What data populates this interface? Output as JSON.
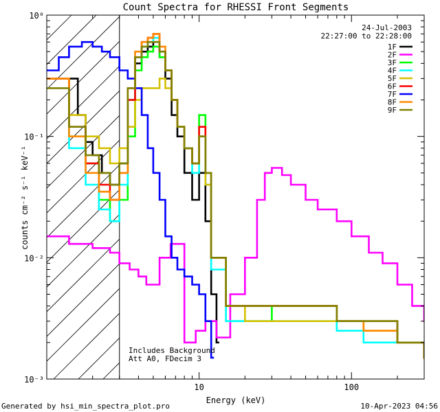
{
  "chart_data": {
    "type": "line",
    "title": "Count Spectra for RHESSI Front Segments",
    "xlabel": "Energy (keV)",
    "ylabel_html": "counts cm⁻² s⁻¹ keV⁻¹",
    "x_scale": "log",
    "y_scale": "log",
    "xlim": [
      1,
      300
    ],
    "ylim": [
      0.001,
      1
    ],
    "x_ticks": [
      {
        "v": 10,
        "label": "10"
      },
      {
        "v": 100,
        "label": "100"
      }
    ],
    "y_ticks": [
      {
        "v": 0.001,
        "label": "10⁻³"
      },
      {
        "v": 0.01,
        "label": "10⁻²"
      },
      {
        "v": 0.1,
        "label": "10⁻¹"
      },
      {
        "v": 1,
        "label": "10⁰"
      }
    ],
    "date": "24-Jul-2003",
    "time_range": "22:27:00 to 22:28:00",
    "legend_position": "top-right",
    "annotations": [
      "Includes Background",
      "Att A0, FDecim 3"
    ],
    "hatched_region_max_kev": 3,
    "series": [
      {
        "name": "1F",
        "color": "#000000",
        "x": [
          1.4,
          1.6,
          1.8,
          2.0,
          2.3,
          2.6,
          3.0,
          3.4,
          3.8,
          4.2,
          4.6,
          5.0,
          5.5,
          6.0,
          6.6,
          7.2,
          8.0,
          9.0,
          10.0,
          11.0,
          12.0,
          13.0
        ],
        "y": [
          0.3,
          0.15,
          0.09,
          0.07,
          0.05,
          0.04,
          0.06,
          0.2,
          0.4,
          0.5,
          0.55,
          0.6,
          0.45,
          0.3,
          0.15,
          0.1,
          0.05,
          0.03,
          0.05,
          0.02,
          0.005,
          0.002
        ]
      },
      {
        "name": "2F",
        "color": "#ff00ff",
        "x": [
          1.0,
          1.4,
          2.0,
          2.6,
          3.0,
          3.5,
          4.0,
          4.5,
          5.5,
          6.5,
          8.0,
          9.5,
          11.0,
          13.0,
          16.0,
          20.0,
          24.0,
          27.0,
          30.0,
          35.0,
          40.0,
          50.0,
          60.0,
          80.0,
          100.0,
          130.0,
          160.0,
          200.0,
          250.0,
          300.0
        ],
        "y": [
          0.015,
          0.013,
          0.012,
          0.011,
          0.009,
          0.008,
          0.007,
          0.006,
          0.01,
          0.013,
          0.002,
          0.0025,
          0.003,
          0.0022,
          0.005,
          0.01,
          0.03,
          0.05,
          0.055,
          0.048,
          0.04,
          0.03,
          0.025,
          0.02,
          0.015,
          0.011,
          0.009,
          0.006,
          0.004,
          0.003
        ]
      },
      {
        "name": "3F",
        "color": "#00ff00",
        "x": [
          1.0,
          1.4,
          1.8,
          2.2,
          2.6,
          3.0,
          3.4,
          3.8,
          4.2,
          4.6,
          5.0,
          5.5,
          6.0,
          6.6,
          7.2,
          8.0,
          9.0,
          10.0,
          11.0,
          12.0,
          15.0,
          20.0,
          30.0,
          50.0,
          80.0,
          120.0,
          200.0,
          300.0
        ],
        "y": [
          0.3,
          0.1,
          0.06,
          0.03,
          0.02,
          0.03,
          0.1,
          0.35,
          0.45,
          0.5,
          0.55,
          0.45,
          0.35,
          0.2,
          0.12,
          0.08,
          0.06,
          0.15,
          0.05,
          0.01,
          0.003,
          0.003,
          0.004,
          0.004,
          0.003,
          0.003,
          0.002,
          0.002
        ]
      },
      {
        "name": "4F",
        "color": "#00ffff",
        "x": [
          1.0,
          1.4,
          1.8,
          2.2,
          2.6,
          3.0,
          3.4,
          3.8,
          4.2,
          4.6,
          5.0,
          5.5,
          6.0,
          6.6,
          7.2,
          8.0,
          9.0,
          10.0,
          11.0,
          12.0,
          15.0,
          20.0,
          30.0,
          50.0,
          80.0,
          120.0,
          200.0,
          300.0
        ],
        "y": [
          0.3,
          0.08,
          0.04,
          0.025,
          0.02,
          0.04,
          0.2,
          0.45,
          0.55,
          0.6,
          0.65,
          0.5,
          0.35,
          0.2,
          0.12,
          0.08,
          0.05,
          0.1,
          0.04,
          0.008,
          0.003,
          0.003,
          0.003,
          0.003,
          0.0025,
          0.002,
          0.002,
          0.0015
        ]
      },
      {
        "name": "5F",
        "color": "#d4c000",
        "x": [
          1.0,
          1.4,
          1.8,
          2.2,
          2.6,
          3.0,
          3.4,
          3.8,
          4.2,
          4.6,
          5.0,
          5.5,
          6.0,
          6.6,
          7.2,
          8.0,
          9.0,
          10.0,
          11.0,
          12.0,
          15.0,
          20.0,
          30.0,
          50.0,
          80.0,
          120.0,
          200.0,
          300.0
        ],
        "y": [
          0.3,
          0.15,
          0.1,
          0.08,
          0.06,
          0.08,
          0.12,
          0.2,
          0.25,
          0.25,
          0.25,
          0.3,
          0.25,
          0.2,
          0.12,
          0.08,
          0.06,
          0.1,
          0.04,
          0.01,
          0.004,
          0.003,
          0.003,
          0.003,
          0.003,
          0.0025,
          0.002,
          0.0015
        ]
      },
      {
        "name": "6F",
        "color": "#ff0000",
        "x": [
          1.0,
          1.4,
          1.8,
          2.2,
          2.6,
          3.0,
          3.4,
          3.8,
          4.2,
          4.6,
          5.0,
          5.5,
          6.0,
          6.6,
          7.2,
          8.0,
          9.0,
          10.0,
          11.0,
          12.0,
          15.0,
          20.0,
          30.0,
          50.0,
          80.0,
          120.0,
          200.0,
          300.0
        ],
        "y": [
          0.3,
          0.12,
          0.06,
          0.04,
          0.03,
          0.05,
          0.2,
          0.45,
          0.6,
          0.65,
          0.7,
          0.5,
          0.35,
          0.2,
          0.12,
          0.08,
          0.06,
          0.12,
          0.05,
          0.01,
          0.004,
          0.004,
          0.004,
          0.004,
          0.003,
          0.003,
          0.002,
          0.0015
        ]
      },
      {
        "name": "7F",
        "color": "#0000ff",
        "x": [
          1.0,
          1.2,
          1.4,
          1.7,
          2.0,
          2.3,
          2.6,
          3.0,
          3.4,
          3.8,
          4.2,
          4.6,
          5.0,
          5.5,
          6.0,
          6.6,
          7.2,
          8.0,
          9.0,
          10.0,
          11.0,
          12.0
        ],
        "y": [
          0.35,
          0.45,
          0.55,
          0.6,
          0.55,
          0.5,
          0.45,
          0.35,
          0.3,
          0.25,
          0.15,
          0.08,
          0.05,
          0.03,
          0.015,
          0.01,
          0.008,
          0.007,
          0.006,
          0.005,
          0.003,
          0.0015
        ]
      },
      {
        "name": "8F",
        "color": "#ff8800",
        "x": [
          1.0,
          1.4,
          1.8,
          2.2,
          2.6,
          3.0,
          3.4,
          3.8,
          4.2,
          4.6,
          5.0,
          5.5,
          6.0,
          6.6,
          7.2,
          8.0,
          9.0,
          10.0,
          11.0,
          12.0,
          15.0,
          20.0,
          30.0,
          50.0,
          80.0,
          120.0,
          200.0,
          300.0
        ],
        "y": [
          0.3,
          0.1,
          0.05,
          0.035,
          0.03,
          0.05,
          0.25,
          0.5,
          0.6,
          0.65,
          0.7,
          0.55,
          0.35,
          0.2,
          0.12,
          0.08,
          0.06,
          0.1,
          0.05,
          0.01,
          0.004,
          0.004,
          0.004,
          0.004,
          0.003,
          0.0025,
          0.002,
          0.0015
        ]
      },
      {
        "name": "9F",
        "color": "#808000",
        "x": [
          1.0,
          1.4,
          1.8,
          2.2,
          2.6,
          3.0,
          3.4,
          3.8,
          4.2,
          4.6,
          5.0,
          5.5,
          6.0,
          6.6,
          7.2,
          8.0,
          9.0,
          10.0,
          11.0,
          12.0,
          15.0,
          20.0,
          30.0,
          50.0,
          80.0,
          120.0,
          200.0,
          300.0
        ],
        "y": [
          0.25,
          0.12,
          0.07,
          0.05,
          0.04,
          0.06,
          0.25,
          0.45,
          0.55,
          0.6,
          0.6,
          0.5,
          0.35,
          0.2,
          0.12,
          0.08,
          0.06,
          0.1,
          0.05,
          0.01,
          0.004,
          0.004,
          0.004,
          0.004,
          0.003,
          0.003,
          0.002,
          0.0015
        ]
      }
    ]
  },
  "footer": {
    "generated": "Generated by hsi_min_spectra_plot.pro",
    "date": "10-Apr-2023 04:56"
  }
}
